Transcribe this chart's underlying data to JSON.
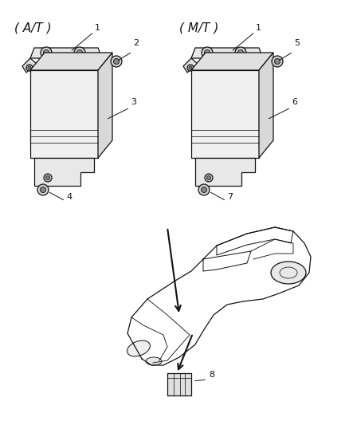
{
  "bg_color": "#ffffff",
  "line_color": "#111111",
  "fig_width": 4.38,
  "fig_height": 5.33,
  "dpi": 100,
  "labels": {
    "AT": "( A/T )",
    "MT": "( M/T )",
    "n1_at": "1",
    "n2_at": "2",
    "n3_at": "3",
    "n4_at": "4",
    "n1_mt": "1",
    "n5_mt": "5",
    "n6_mt": "6",
    "n7_mt": "7",
    "n8": "8"
  }
}
